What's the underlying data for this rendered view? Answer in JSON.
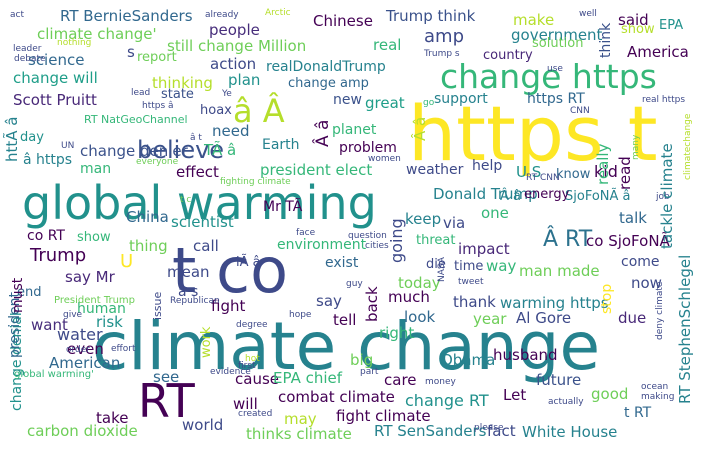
{
  "words": [
    {
      "text": "climate change",
      "color": "#26828e"
    },
    {
      "text": "https t",
      "color": "#fde725"
    },
    {
      "text": "t co",
      "color": "#3e4a89"
    },
    {
      "text": "global warming",
      "color": "#21918c"
    },
    {
      "text": "RT",
      "color": "#440154"
    },
    {
      "text": "change https",
      "color": "#35b779"
    },
    {
      "text": "â Â",
      "color": "#b5de2b"
    },
    {
      "text": "believe",
      "color": "#3b528b"
    },
    {
      "text": "Â RT",
      "color": "#2c728e"
    },
    {
      "text": "Â â",
      "color": "#440154"
    },
    {
      "text": "RT BernieSanders",
      "color": "#31688e"
    },
    {
      "text": "Trump think",
      "color": "#3b528b"
    },
    {
      "text": "Chinese",
      "color": "#440154"
    },
    {
      "text": "climate change'",
      "color": "#6ece58"
    },
    {
      "text": "people",
      "color": "#472d7b"
    },
    {
      "text": "still change Million",
      "color": "#6ece58"
    },
    {
      "text": "real",
      "color": "#35b779"
    },
    {
      "text": "amp",
      "color": "#3e4a89"
    },
    {
      "text": "make",
      "color": "#b5de2b"
    },
    {
      "text": "said",
      "color": "#440154"
    },
    {
      "text": "EPA",
      "color": "#21918c"
    },
    {
      "text": "show",
      "color": "#b5de2b"
    },
    {
      "text": "think",
      "color": "#3b528b"
    },
    {
      "text": "government",
      "color": "#26828e"
    },
    {
      "text": "solution",
      "color": "#6ece58"
    },
    {
      "text": "country",
      "color": "#482878"
    },
    {
      "text": "America",
      "color": "#440154"
    },
    {
      "text": "science",
      "color": "#31688e"
    },
    {
      "text": "change will",
      "color": "#1f9e89"
    },
    {
      "text": "report",
      "color": "#6ece58"
    },
    {
      "text": "action",
      "color": "#3e4a89"
    },
    {
      "text": "plan",
      "color": "#21918c"
    },
    {
      "text": "thinking",
      "color": "#b5de2b"
    },
    {
      "text": "realDonaldTrump",
      "color": "#26828e"
    },
    {
      "text": "change amp",
      "color": "#31688e"
    },
    {
      "text": "Scott Pruitt",
      "color": "#482878"
    },
    {
      "text": "state",
      "color": "#3b528b"
    },
    {
      "text": "hoax",
      "color": "#3e4a89"
    },
    {
      "text": "new",
      "color": "#3b528b"
    },
    {
      "text": "great",
      "color": "#1f9e89"
    },
    {
      "text": "support",
      "color": "#26828e"
    },
    {
      "text": "https RT",
      "color": "#31688e"
    },
    {
      "text": "RT NatGeoChannel",
      "color": "#35b779"
    },
    {
      "text": "need",
      "color": "#31688e"
    },
    {
      "text": "TÃ â",
      "color": "#35b779"
    },
    {
      "text": "Earth",
      "color": "#26828e"
    },
    {
      "text": "planet",
      "color": "#35b779"
    },
    {
      "text": "problem",
      "color": "#440154"
    },
    {
      "text": "â https",
      "color": "#26828e"
    },
    {
      "text": "change denier",
      "color": "#3b528b"
    },
    {
      "text": "day",
      "color": "#21918c"
    },
    {
      "text": "man",
      "color": "#35b779"
    },
    {
      "text": "effect",
      "color": "#440154"
    },
    {
      "text": "president elect",
      "color": "#35b779"
    },
    {
      "text": "weather",
      "color": "#3e4a89"
    },
    {
      "text": "help",
      "color": "#3e4a89"
    },
    {
      "text": "U S",
      "color": "#21918c"
    },
    {
      "text": "know",
      "color": "#31688e"
    },
    {
      "text": "kid",
      "color": "#440154"
    },
    {
      "text": "Donald Trump",
      "color": "#26828e"
    },
    {
      "text": "SjoFoNÃ â",
      "color": "#26828e"
    },
    {
      "text": "energy",
      "color": "#440154"
    },
    {
      "text": "China",
      "color": "#31688e"
    },
    {
      "text": "scientist",
      "color": "#21918c"
    },
    {
      "text": "Mr TÃ",
      "color": "#440154"
    },
    {
      "text": "keep",
      "color": "#26828e"
    },
    {
      "text": "via",
      "color": "#3e4a89"
    },
    {
      "text": "one",
      "color": "#35b779"
    },
    {
      "text": "Â â",
      "color": "#26828e"
    },
    {
      "text": "talk",
      "color": "#31688e"
    },
    {
      "text": "co RT",
      "color": "#440154"
    },
    {
      "text": "show",
      "color": "#35b779"
    },
    {
      "text": "thing",
      "color": "#6ece58"
    },
    {
      "text": "call",
      "color": "#3e4a89"
    },
    {
      "text": "environment",
      "color": "#35b779"
    },
    {
      "text": "impact",
      "color": "#482878"
    },
    {
      "text": "threat",
      "color": "#35b779"
    },
    {
      "text": "co SjoFoNÃ",
      "color": "#440154"
    },
    {
      "text": "Trump",
      "color": "#440154"
    },
    {
      "text": "iÃ â",
      "color": "#3e4a89"
    },
    {
      "text": "time",
      "color": "#3e4a89"
    },
    {
      "text": "say Mr",
      "color": "#482878"
    },
    {
      "text": "mean",
      "color": "#3e4a89"
    },
    {
      "text": "exist",
      "color": "#31688e"
    },
    {
      "text": "die",
      "color": "#3e4a89"
    },
    {
      "text": "way",
      "color": "#35b779"
    },
    {
      "text": "man made",
      "color": "#6ece58"
    },
    {
      "text": "come",
      "color": "#3e4a89"
    },
    {
      "text": "now",
      "color": "#3e4a89"
    },
    {
      "text": "today",
      "color": "#6ece58"
    },
    {
      "text": "much",
      "color": "#440154"
    },
    {
      "text": "end",
      "color": "#31688e"
    },
    {
      "text": "human",
      "color": "#35b779"
    },
    {
      "text": "fight",
      "color": "#440154"
    },
    {
      "text": "say",
      "color": "#3e4a89"
    },
    {
      "text": "thank",
      "color": "#3e4a89"
    },
    {
      "text": "warming https",
      "color": "#26828e"
    },
    {
      "text": "Al Gore",
      "color": "#3e4a89"
    },
    {
      "text": "want",
      "color": "#472d7b"
    },
    {
      "text": "risk",
      "color": "#21918c"
    },
    {
      "text": "tell",
      "color": "#440154"
    },
    {
      "text": "look",
      "color": "#31688e"
    },
    {
      "text": "year",
      "color": "#6ece58"
    },
    {
      "text": "due",
      "color": "#482878"
    },
    {
      "text": "change denial",
      "color": "#21918c"
    },
    {
      "text": "water",
      "color": "#3e4a89"
    },
    {
      "text": "right",
      "color": "#35b779"
    },
    {
      "text": "even",
      "color": "#440154"
    },
    {
      "text": "big",
      "color": "#6ece58"
    },
    {
      "text": "American",
      "color": "#31688e"
    },
    {
      "text": "see",
      "color": "#31688e"
    },
    {
      "text": "cause",
      "color": "#440154"
    },
    {
      "text": "care",
      "color": "#440154"
    },
    {
      "text": "Obama",
      "color": "#26828e"
    },
    {
      "text": "husband",
      "color": "#440154"
    },
    {
      "text": "EPA chief",
      "color": "#35b779"
    },
    {
      "text": "change RT",
      "color": "#21918c"
    },
    {
      "text": "future",
      "color": "#3b528b"
    },
    {
      "text": "Let",
      "color": "#440154"
    },
    {
      "text": "good",
      "color": "#6ece58"
    },
    {
      "text": "t RT",
      "color": "#31688e"
    },
    {
      "text": "will",
      "color": "#440154"
    },
    {
      "text": "combat climate",
      "color": "#440154"
    },
    {
      "text": "take",
      "color": "#440154"
    },
    {
      "text": "world",
      "color": "#3e4a89"
    },
    {
      "text": "fight climate",
      "color": "#440154"
    },
    {
      "text": "may",
      "color": "#b5de2b"
    },
    {
      "text": "carbon dioxide",
      "color": "#6ece58"
    },
    {
      "text": "thinks climate",
      "color": "#6ece58"
    },
    {
      "text": "RT SenSanders",
      "color": "#26828e"
    },
    {
      "text": "fact",
      "color": "#3e4a89"
    },
    {
      "text": "White House",
      "color": "#26828e"
    },
    {
      "text": "s",
      "color": "#3e4a89"
    },
    {
      "text": "U",
      "color": "#fde725"
    },
    {
      "text": "â s",
      "color": "#3e4a89"
    },
    {
      "text": "act",
      "color": "#3e4a89"
    },
    {
      "text": "already",
      "color": "#3e4a89"
    },
    {
      "text": "Arctic",
      "color": "#b5de2b"
    },
    {
      "text": "well",
      "color": "#3e4a89"
    },
    {
      "text": "nothing",
      "color": "#b5de2b"
    },
    {
      "text": "leader",
      "color": "#3e4a89"
    },
    {
      "text": "debate",
      "color": "#3e4a89"
    },
    {
      "text": "Trump s",
      "color": "#3e4a89"
    },
    {
      "text": "use",
      "color": "#3e4a89"
    },
    {
      "text": "lead",
      "color": "#3e4a89"
    },
    {
      "text": "https â",
      "color": "#3e4a89"
    },
    {
      "text": "Ye",
      "color": "#3e4a89"
    },
    {
      "text": "go",
      "color": "#35b779"
    },
    {
      "text": "real https",
      "color": "#3e4a89"
    },
    {
      "text": "CNN",
      "color": "#3e4a89"
    },
    {
      "text": "UN",
      "color": "#3e4a89"
    },
    {
      "text": "â t",
      "color": "#3e4a89"
    },
    {
      "text": "women",
      "color": "#3e4a89"
    },
    {
      "text": "RT CNN",
      "color": "#3e4a89"
    },
    {
      "text": "many",
      "color": "#6ece58"
    },
    {
      "text": "everyone",
      "color": "#6ece58"
    },
    {
      "text": "fighting climate",
      "color": "#6ece58"
    },
    {
      "text": "climatechange",
      "color": "#b5de2b"
    },
    {
      "text": "t c",
      "color": "#6ece58"
    },
    {
      "text": "job",
      "color": "#3e4a89"
    },
    {
      "text": "question",
      "color": "#3e4a89"
    },
    {
      "text": "face",
      "color": "#3e4a89"
    },
    {
      "text": "cities",
      "color": "#3e4a89"
    },
    {
      "text": "NASA",
      "color": "#3e4a89"
    },
    {
      "text": "President Trump",
      "color": "#6ece58"
    },
    {
      "text": "guy",
      "color": "#3e4a89"
    },
    {
      "text": "tweet",
      "color": "#3e4a89"
    },
    {
      "text": "issue",
      "color": "#3e4a89"
    },
    {
      "text": "stop",
      "color": "#fde725"
    },
    {
      "text": "Republican",
      "color": "#3e4a89"
    },
    {
      "text": "give",
      "color": "#3e4a89"
    },
    {
      "text": "degree",
      "color": "#3e4a89"
    },
    {
      "text": "hope",
      "color": "#3e4a89"
    },
    {
      "text": "deny climate",
      "color": "#3e4a89"
    },
    {
      "text": "order",
      "color": "#3e4a89"
    },
    {
      "text": "effort",
      "color": "#3e4a89"
    },
    {
      "text": "global warming'",
      "color": "#35b779"
    },
    {
      "text": "hot",
      "color": "#b5de2b"
    },
    {
      "text": "evidence",
      "color": "#3e4a89"
    },
    {
      "text": "first",
      "color": "#3e4a89"
    },
    {
      "text": "part",
      "color": "#3e4a89"
    },
    {
      "text": "money",
      "color": "#3e4a89"
    },
    {
      "text": "actually",
      "color": "#3e4a89"
    },
    {
      "text": "ocean",
      "color": "#3e4a89"
    },
    {
      "text": "making",
      "color": "#3e4a89"
    },
    {
      "text": "created",
      "color": "#3e4a89"
    },
    {
      "text": "please",
      "color": "#3e4a89"
    },
    {
      "text": "president",
      "color": "#31688e"
    },
    {
      "text": "must",
      "color": "#440154"
    },
    {
      "text": "httÃ â",
      "color": "#26828e"
    },
    {
      "text": "work",
      "color": "#b5de2b"
    },
    {
      "text": "going",
      "color": "#3e4a89"
    },
    {
      "text": "back",
      "color": "#440154"
    },
    {
      "text": "Â â",
      "color": "#b5de2b"
    },
    {
      "text": "really",
      "color": "#35b779"
    },
    {
      "text": "read",
      "color": "#440154"
    },
    {
      "text": "tackle climate",
      "color": "#26828e"
    },
    {
      "text": "RT StephenSchlegel",
      "color": "#26828e"
    }
  ]
}
